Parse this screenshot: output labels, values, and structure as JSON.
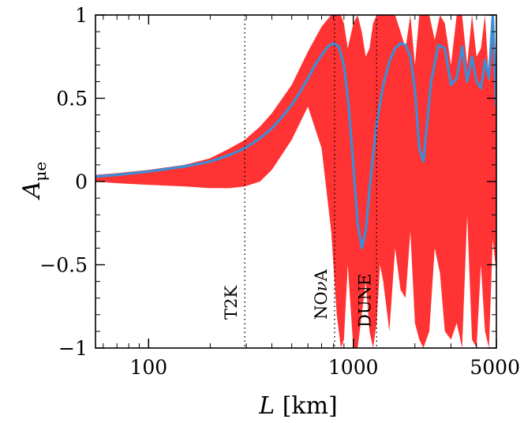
{
  "chart_data": {
    "type": "area",
    "xscale": "log",
    "xlim": [
      55,
      5000
    ],
    "ylim": [
      -1,
      1
    ],
    "xlabel_var": "L",
    "xlabel_unit": "[km]",
    "ylabel_main": "A",
    "ylabel_sub": "μe",
    "x_ticks": [
      {
        "value": 100,
        "label": "100"
      },
      {
        "value": 1000,
        "label": "1000"
      },
      {
        "value": 5000,
        "label": "5000"
      }
    ],
    "y_ticks": [
      {
        "value": 1,
        "label": "1"
      },
      {
        "value": 0.5,
        "label": "0.5"
      },
      {
        "value": 0,
        "label": "0"
      },
      {
        "value": -0.5,
        "label": "−0.5"
      },
      {
        "value": -1,
        "label": "−1"
      }
    ],
    "experiments": [
      {
        "name": "T2K",
        "L": 295
      },
      {
        "name": "NO",
        "name_greek": "ν",
        "name_suffix": "A",
        "L": 810
      },
      {
        "name": "DUNE",
        "L": 1300
      }
    ],
    "series": [
      {
        "name": "asymmetry band",
        "kind": "band",
        "color": "#ff3333",
        "x": [
          55,
          70,
          100,
          150,
          200,
          250,
          295,
          350,
          400,
          500,
          600,
          700,
          780,
          830,
          870,
          900,
          940,
          1000,
          1050,
          1100,
          1150,
          1200,
          1250,
          1300,
          1350,
          1400,
          1500,
          1600,
          1700,
          1800,
          1900,
          2000,
          2100,
          2200,
          2350,
          2500,
          2650,
          2800,
          3000,
          3200,
          3400,
          3600,
          3800,
          4000,
          4200,
          4400,
          4600,
          4800,
          5000
        ],
        "upper": [
          0.04,
          0.05,
          0.07,
          0.1,
          0.14,
          0.2,
          0.25,
          0.33,
          0.41,
          0.58,
          0.78,
          0.93,
          1,
          1,
          1,
          0.95,
          0.8,
          0.95,
          1,
          0.9,
          0.75,
          0.8,
          0.95,
          1,
          1,
          1,
          1,
          1,
          0.9,
          0.8,
          1,
          0.7,
          1,
          1,
          1,
          0.85,
          1,
          0.95,
          0.7,
          1,
          1,
          0.7,
          1,
          0.75,
          0.8,
          1,
          0.6,
          1,
          0.65
        ],
        "lower": [
          0.0,
          -0.01,
          -0.02,
          -0.03,
          -0.04,
          -0.04,
          -0.03,
          0.0,
          0.07,
          0.25,
          0.45,
          0.2,
          -0.3,
          -0.8,
          -1,
          -0.95,
          -0.5,
          -1,
          -1,
          -0.8,
          -0.6,
          -0.9,
          -1,
          -0.85,
          -0.5,
          -0.6,
          -0.9,
          -0.4,
          -0.65,
          -0.7,
          -0.3,
          -0.85,
          -0.95,
          -1,
          -0.9,
          -0.4,
          -0.55,
          -0.9,
          -0.95,
          -0.85,
          -1,
          -0.2,
          -0.95,
          -1,
          -0.5,
          -0.9,
          -1,
          -0.35,
          -0.55
        ]
      },
      {
        "name": "central curve",
        "kind": "line",
        "color": "#3a8fd8",
        "x": [
          55,
          70,
          100,
          150,
          200,
          250,
          295,
          350,
          400,
          450,
          500,
          550,
          600,
          650,
          700,
          750,
          800,
          850,
          900,
          950,
          1000,
          1050,
          1100,
          1150,
          1200,
          1300,
          1400,
          1500,
          1600,
          1700,
          1800,
          1900,
          2000,
          2100,
          2200,
          2400,
          2600,
          2800,
          3000,
          3200,
          3400,
          3600,
          3800,
          4000,
          4200,
          4400,
          4600,
          4800,
          5000
        ],
        "y": [
          0.03,
          0.04,
          0.06,
          0.09,
          0.12,
          0.16,
          0.2,
          0.26,
          0.32,
          0.39,
          0.46,
          0.54,
          0.62,
          0.7,
          0.76,
          0.81,
          0.83,
          0.81,
          0.7,
          0.45,
          0.1,
          -0.25,
          -0.4,
          -0.3,
          -0.05,
          0.35,
          0.58,
          0.72,
          0.8,
          0.83,
          0.82,
          0.75,
          0.55,
          0.2,
          0.12,
          0.6,
          0.82,
          0.8,
          0.58,
          0.62,
          0.81,
          0.6,
          0.75,
          0.6,
          0.56,
          0.73,
          0.62,
          1.0,
          0.45
        ]
      }
    ]
  }
}
